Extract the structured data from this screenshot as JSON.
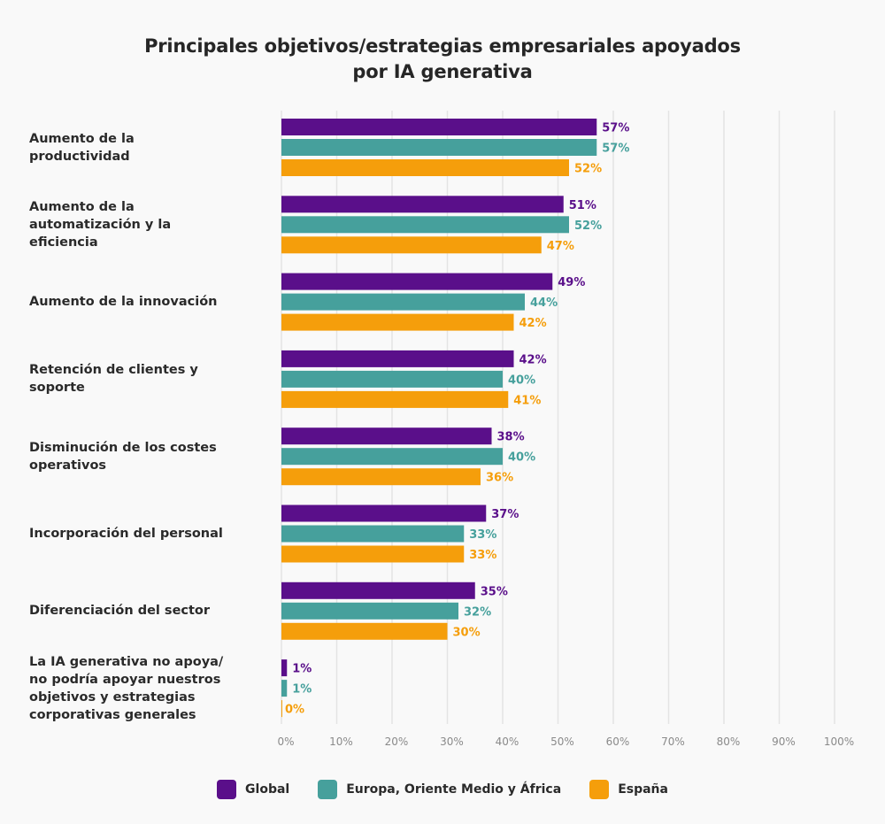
{
  "chart_data": {
    "type": "bar",
    "orientation": "horizontal",
    "title": "Principales objetivos/estrategias empresariales apoyados por IA generativa",
    "title_lines": [
      "Principales objetivos/estrategias empresariales apoyados",
      "por IA generativa"
    ],
    "xlabel": "",
    "ylabel": "",
    "xlim": [
      0,
      100
    ],
    "x_ticks": [
      "0%",
      "10%",
      "20%",
      "30%",
      "40%",
      "50%",
      "60%",
      "70%",
      "80%",
      "90%",
      "100%"
    ],
    "grid": true,
    "legend_position": "bottom",
    "categories": [
      "Aumento de la productividad",
      "Aumento de la automatización y la eficiencia",
      "Aumento de la innovación",
      "Retención de clientes y soporte",
      "Disminución de los costes operativos",
      "Incorporación del personal",
      "Diferenciación del sector",
      "La IA generativa no apoya/ no podría apoyar nuestros objetivos y estrategias corporativas generales"
    ],
    "category_label_lines": [
      [
        "Aumento de la",
        "productividad"
      ],
      [
        "Aumento de la",
        "automatización y la",
        "eficiencia"
      ],
      [
        "Aumento de la innovación"
      ],
      [
        "Retención de clientes y",
        "soporte"
      ],
      [
        "Disminución de los costes",
        "operativos"
      ],
      [
        "Incorporación del personal"
      ],
      [
        "Diferenciación del sector"
      ],
      [
        "La IA generativa no apoya/",
        "no podría apoyar nuestros",
        "objetivos y estrategias",
        "corporativas generales"
      ]
    ],
    "series": [
      {
        "name": "Global",
        "color": "#5a0f8a",
        "values": [
          57,
          51,
          49,
          42,
          38,
          37,
          35,
          1
        ]
      },
      {
        "name": "Europa, Oriente Medio y África",
        "color": "#46a09c",
        "values": [
          57,
          52,
          44,
          40,
          40,
          33,
          32,
          1
        ]
      },
      {
        "name": "España",
        "color": "#f59e0b",
        "values": [
          52,
          47,
          42,
          41,
          36,
          33,
          30,
          0
        ]
      }
    ],
    "value_suffix": "%"
  }
}
